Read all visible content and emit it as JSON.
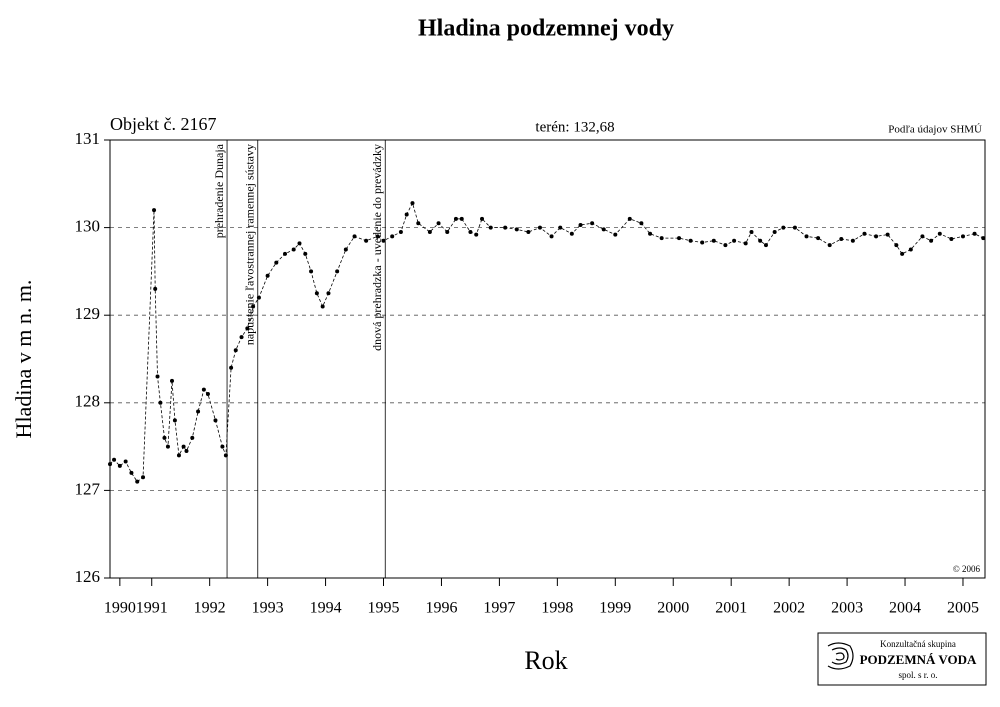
{
  "chart_data": {
    "type": "line",
    "title": "Hladina podzemnej vody",
    "subtitle": "Objekt č. 2167",
    "terrain": "terén: 132,68",
    "source": "Podľa údajov SHMÚ",
    "copyright": "© 2006",
    "y_label": "Hladina v m n. m.",
    "x_label": "Rok",
    "color": "#000000",
    "grid": true,
    "xlim": [
      1990.78,
      2005.88
    ],
    "ylim": [
      126,
      131
    ],
    "yticks": [
      126,
      127,
      128,
      129,
      130,
      131
    ],
    "xticks": [
      {
        "value": 1990.95,
        "label": "1990"
      },
      {
        "value": 1991.5,
        "label": "1991"
      },
      {
        "value": 1992.5,
        "label": "1992"
      },
      {
        "value": 1993.5,
        "label": "1993"
      },
      {
        "value": 1994.5,
        "label": "1994"
      },
      {
        "value": 1995.5,
        "label": "1995"
      },
      {
        "value": 1996.5,
        "label": "1996"
      },
      {
        "value": 1997.5,
        "label": "1997"
      },
      {
        "value": 1998.5,
        "label": "1998"
      },
      {
        "value": 1999.5,
        "label": "1999"
      },
      {
        "value": 2000.5,
        "label": "2000"
      },
      {
        "value": 2001.5,
        "label": "2001"
      },
      {
        "value": 2002.5,
        "label": "2002"
      },
      {
        "value": 2003.5,
        "label": "2003"
      },
      {
        "value": 2004.5,
        "label": "2004"
      },
      {
        "value": 2005.5,
        "label": "2005"
      }
    ],
    "events": [
      {
        "x": 1992.8,
        "label": "prehradenie Dunaja"
      },
      {
        "x": 1993.33,
        "label": "napustenie ľavostrannej ramennej sústavy"
      },
      {
        "x": 1995.53,
        "label": "dnová prehradzka - uvedenie do prevádzky"
      }
    ],
    "x": [
      1990.78,
      1990.85,
      1990.95,
      1991.05,
      1991.15,
      1991.25,
      1991.35,
      1991.54,
      1991.56,
      1991.6,
      1991.65,
      1991.72,
      1991.78,
      1991.85,
      1991.9,
      1991.97,
      1992.05,
      1992.1,
      1992.2,
      1992.3,
      1992.4,
      1992.47,
      1992.6,
      1992.72,
      1992.78,
      1992.87,
      1992.95,
      1993.05,
      1993.15,
      1993.25,
      1993.35,
      1993.5,
      1993.65,
      1993.8,
      1993.95,
      1994.05,
      1994.15,
      1994.25,
      1994.35,
      1994.45,
      1994.55,
      1994.7,
      1994.85,
      1995.0,
      1995.2,
      1995.4,
      1995.5,
      1995.65,
      1995.8,
      1995.9,
      1996.0,
      1996.1,
      1996.3,
      1996.45,
      1996.6,
      1996.75,
      1996.85,
      1997.0,
      1997.1,
      1997.2,
      1997.35,
      1997.6,
      1997.8,
      1998.0,
      1998.2,
      1998.4,
      1998.55,
      1998.75,
      1998.9,
      1999.1,
      1999.3,
      1999.5,
      1999.75,
      1999.95,
      2000.1,
      2000.3,
      2000.6,
      2000.8,
      2001.0,
      2001.2,
      2001.4,
      2001.55,
      2001.75,
      2001.85,
      2002.0,
      2002.1,
      2002.25,
      2002.4,
      2002.6,
      2002.8,
      2003.0,
      2003.2,
      2003.4,
      2003.6,
      2003.8,
      2004.0,
      2004.2,
      2004.35,
      2004.45,
      2004.6,
      2004.8,
      2004.95,
      2005.1,
      2005.3,
      2005.5,
      2005.7,
      2005.85
    ],
    "values": [
      127.3,
      127.35,
      127.28,
      127.33,
      127.2,
      127.1,
      127.15,
      130.2,
      129.3,
      128.3,
      128.0,
      127.6,
      127.5,
      128.25,
      127.8,
      127.4,
      127.5,
      127.45,
      127.6,
      127.9,
      128.15,
      128.1,
      127.8,
      127.5,
      127.4,
      128.4,
      128.6,
      128.75,
      128.85,
      129.1,
      129.2,
      129.45,
      129.6,
      129.7,
      129.75,
      129.82,
      129.7,
      129.5,
      129.25,
      129.1,
      129.25,
      129.5,
      129.75,
      129.9,
      129.85,
      129.9,
      129.85,
      129.9,
      129.95,
      130.15,
      130.28,
      130.05,
      129.95,
      130.05,
      129.95,
      130.1,
      130.1,
      129.95,
      129.92,
      130.1,
      130.0,
      130.0,
      129.98,
      129.95,
      130.0,
      129.9,
      130.0,
      129.93,
      130.03,
      130.05,
      129.98,
      129.92,
      130.1,
      130.05,
      129.93,
      129.88,
      129.88,
      129.85,
      129.83,
      129.85,
      129.8,
      129.85,
      129.82,
      129.95,
      129.85,
      129.8,
      129.95,
      130.0,
      130.0,
      129.9,
      129.88,
      129.8,
      129.87,
      129.85,
      129.93,
      129.9,
      129.92,
      129.8,
      129.7,
      129.75,
      129.9,
      129.85,
      129.93,
      129.87,
      129.9,
      129.93,
      129.88
    ]
  },
  "logo": {
    "line1": "Konzultačná skupina",
    "line2": "PODZEMNÁ VODA",
    "line3": "spol. s r. o."
  }
}
